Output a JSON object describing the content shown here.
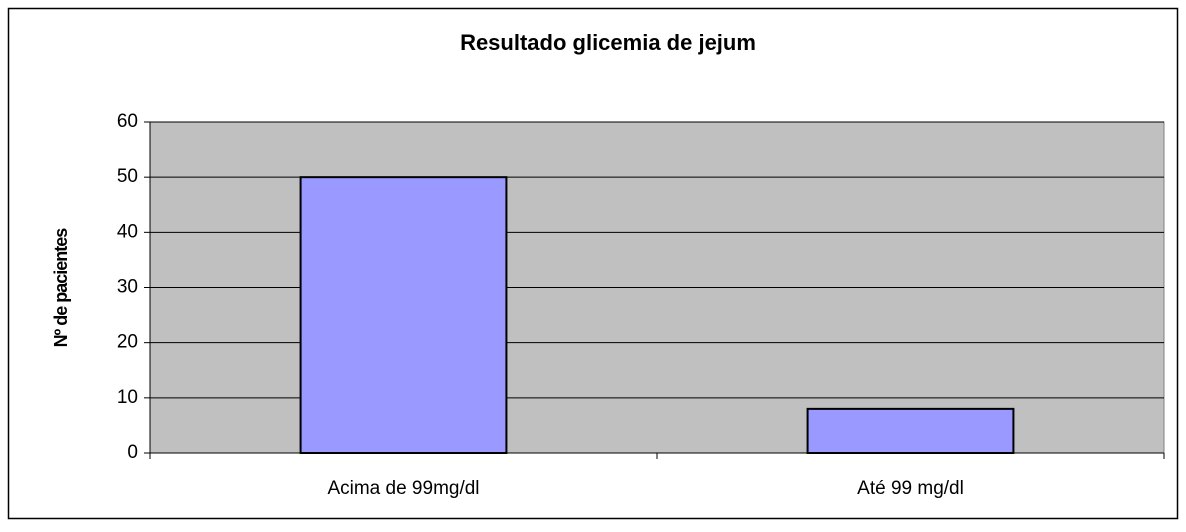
{
  "chart_data": {
    "type": "bar",
    "title": "Resultado glicemia de jejum",
    "y_label": "Nº de pacientes",
    "categories": [
      "Acima de 99mg/dl",
      "Até 99 mg/dl"
    ],
    "values": [
      50,
      8
    ],
    "color": "#9999ff",
    "ylim": [
      0,
      60
    ],
    "yticks": [
      0,
      10,
      20,
      30,
      40,
      50,
      60
    ],
    "grid": true
  }
}
